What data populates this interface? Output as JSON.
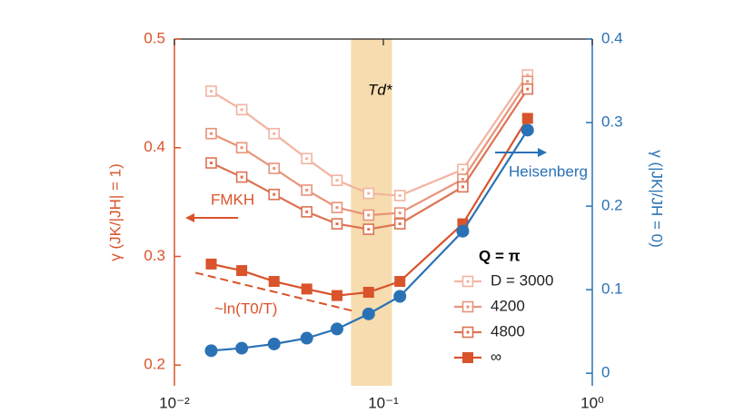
{
  "chart_data": {
    "type": "line",
    "x": [
      0.015,
      0.021,
      0.03,
      0.043,
      0.06,
      0.085,
      0.12,
      0.24,
      0.49
    ],
    "xlim": [
      0.01,
      1
    ],
    "xscale": "log",
    "xticks": [
      {
        "value": 0.01,
        "label": "10⁻²"
      },
      {
        "value": 0.1,
        "label": "10⁻¹"
      },
      {
        "value": 1,
        "label": "10⁰"
      }
    ],
    "ylim": [
      0.181,
      0.5
    ],
    "yticks": [
      0.2,
      0.3,
      0.4,
      0.5
    ],
    "y2lim": [
      -0.015,
      0.4
    ],
    "y2ticks": [
      0,
      0.1,
      0.2,
      0.3,
      0.4
    ],
    "ylabel": "γ (JK/|JH| = 1)",
    "y2label": "γ (|JK|/JH = 0)",
    "left_color": "#d9532b",
    "right_color": "#2a72b5",
    "legend_title": "Q = π",
    "series": [
      {
        "name": "D = 3000",
        "color": "#f2b4a0",
        "marker": "open-square",
        "values": [
          0.452,
          0.435,
          0.413,
          0.39,
          0.37,
          0.358,
          0.356,
          0.38,
          0.467
        ]
      },
      {
        "name": "4200",
        "color": "#e8937a",
        "marker": "open-square",
        "values": [
          0.413,
          0.4,
          0.381,
          0.361,
          0.345,
          0.338,
          0.34,
          0.371,
          0.461
        ]
      },
      {
        "name": "4800",
        "color": "#dd7352",
        "marker": "open-square",
        "values": [
          0.386,
          0.373,
          0.357,
          0.341,
          0.33,
          0.325,
          0.33,
          0.364,
          0.454
        ]
      },
      {
        "name": "∞",
        "color": "#d9532b",
        "marker": "filled-square",
        "values": [
          0.293,
          0.287,
          0.277,
          0.27,
          0.264,
          0.267,
          0.277,
          0.33,
          0.427
        ]
      },
      {
        "color": "#2a72b5",
        "marker": "circle",
        "axis": "y2",
        "values": [
          0.027,
          0.03,
          0.035,
          0.042,
          0.053,
          0.071,
          0.092,
          0.17,
          0.291
        ]
      }
    ],
    "band": {
      "x": [
        0.07,
        0.11
      ],
      "color": "#f6dcae",
      "label": "Td*"
    },
    "guide": {
      "x": [
        0.0126,
        0.071
      ],
      "y": [
        0.285,
        0.25
      ],
      "color": "#d9532b",
      "label": "~ln(T0/T)"
    },
    "annotations": {
      "left": "FMKH",
      "right": "Heisenberg"
    }
  }
}
